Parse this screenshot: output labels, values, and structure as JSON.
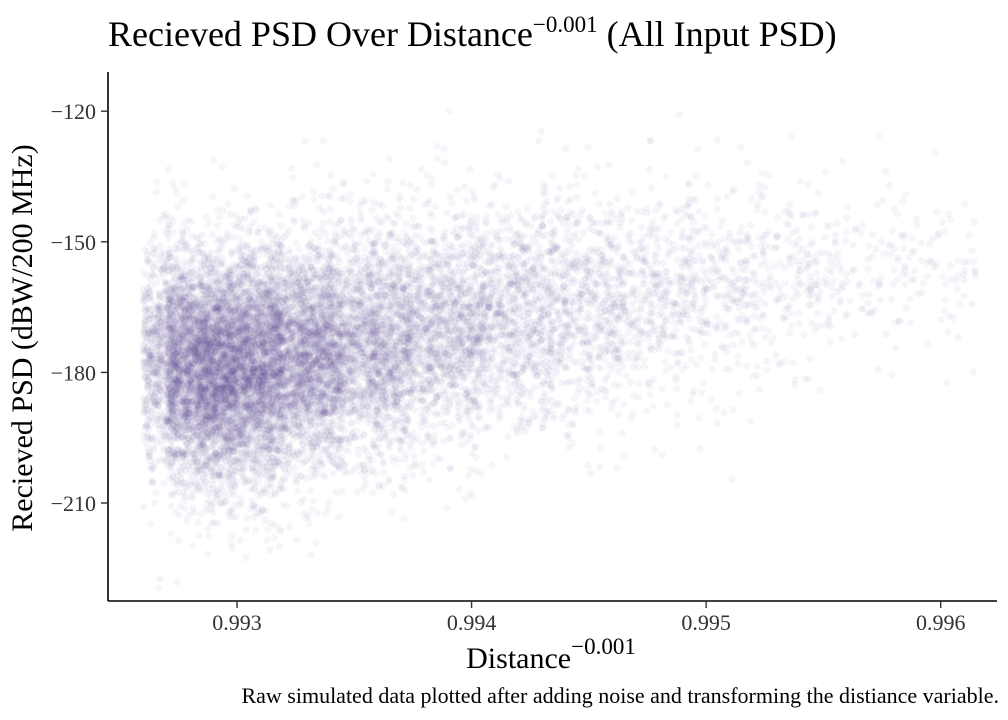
{
  "chart_data": {
    "type": "scatter",
    "title": {
      "text": "Recieved PSD Over Distance",
      "superscript": "−0.001",
      "suffix": " (All Input PSD)"
    },
    "xlabel": {
      "text": "Distance",
      "superscript": "−0.001"
    },
    "ylabel": "Recieved PSD (dBW/200 MHz)",
    "caption": "Raw simulated data plotted after adding noise and transforming the distiance variable.",
    "xlim": [
      0.99245,
      0.99624
    ],
    "ylim": [
      -232.5,
      -111
    ],
    "x_ticks": [
      0.993,
      0.994,
      0.995,
      0.996
    ],
    "x_tick_labels": [
      "0.993",
      "0.994",
      "0.995",
      "0.996"
    ],
    "y_ticks": [
      -120,
      -150,
      -180,
      -210
    ],
    "y_tick_labels": [
      "−120",
      "−150",
      "−180",
      "−210"
    ],
    "point_color": "#483D8B",
    "point_alpha": 0.05,
    "grid": false,
    "legend": "none",
    "density_profile": [
      {
        "x": 0.99265,
        "y_mean": -175,
        "y_sd": 13,
        "weight": 2
      },
      {
        "x": 0.99275,
        "y_mean": -178,
        "y_sd": 13,
        "weight": 6
      },
      {
        "x": 0.9929,
        "y_mean": -180,
        "y_sd": 13,
        "weight": 10
      },
      {
        "x": 0.9931,
        "y_mean": -178,
        "y_sd": 13,
        "weight": 10
      },
      {
        "x": 0.9933,
        "y_mean": -176,
        "y_sd": 13,
        "weight": 9
      },
      {
        "x": 0.9936,
        "y_mean": -173,
        "y_sd": 13,
        "weight": 7
      },
      {
        "x": 0.9939,
        "y_mean": -170,
        "y_sd": 13,
        "weight": 5
      },
      {
        "x": 0.9942,
        "y_mean": -167,
        "y_sd": 13,
        "weight": 3.5
      },
      {
        "x": 0.9945,
        "y_mean": -165,
        "y_sd": 13,
        "weight": 2.5
      },
      {
        "x": 0.9948,
        "y_mean": -162,
        "y_sd": 12,
        "weight": 1.6
      },
      {
        "x": 0.9951,
        "y_mean": -160,
        "y_sd": 12,
        "weight": 1.1
      },
      {
        "x": 0.9954,
        "y_mean": -158,
        "y_sd": 11,
        "weight": 0.7
      },
      {
        "x": 0.9957,
        "y_mean": -157,
        "y_sd": 11,
        "weight": 0.4
      },
      {
        "x": 0.996,
        "y_mean": -156,
        "y_sd": 10,
        "weight": 0.3
      }
    ]
  }
}
